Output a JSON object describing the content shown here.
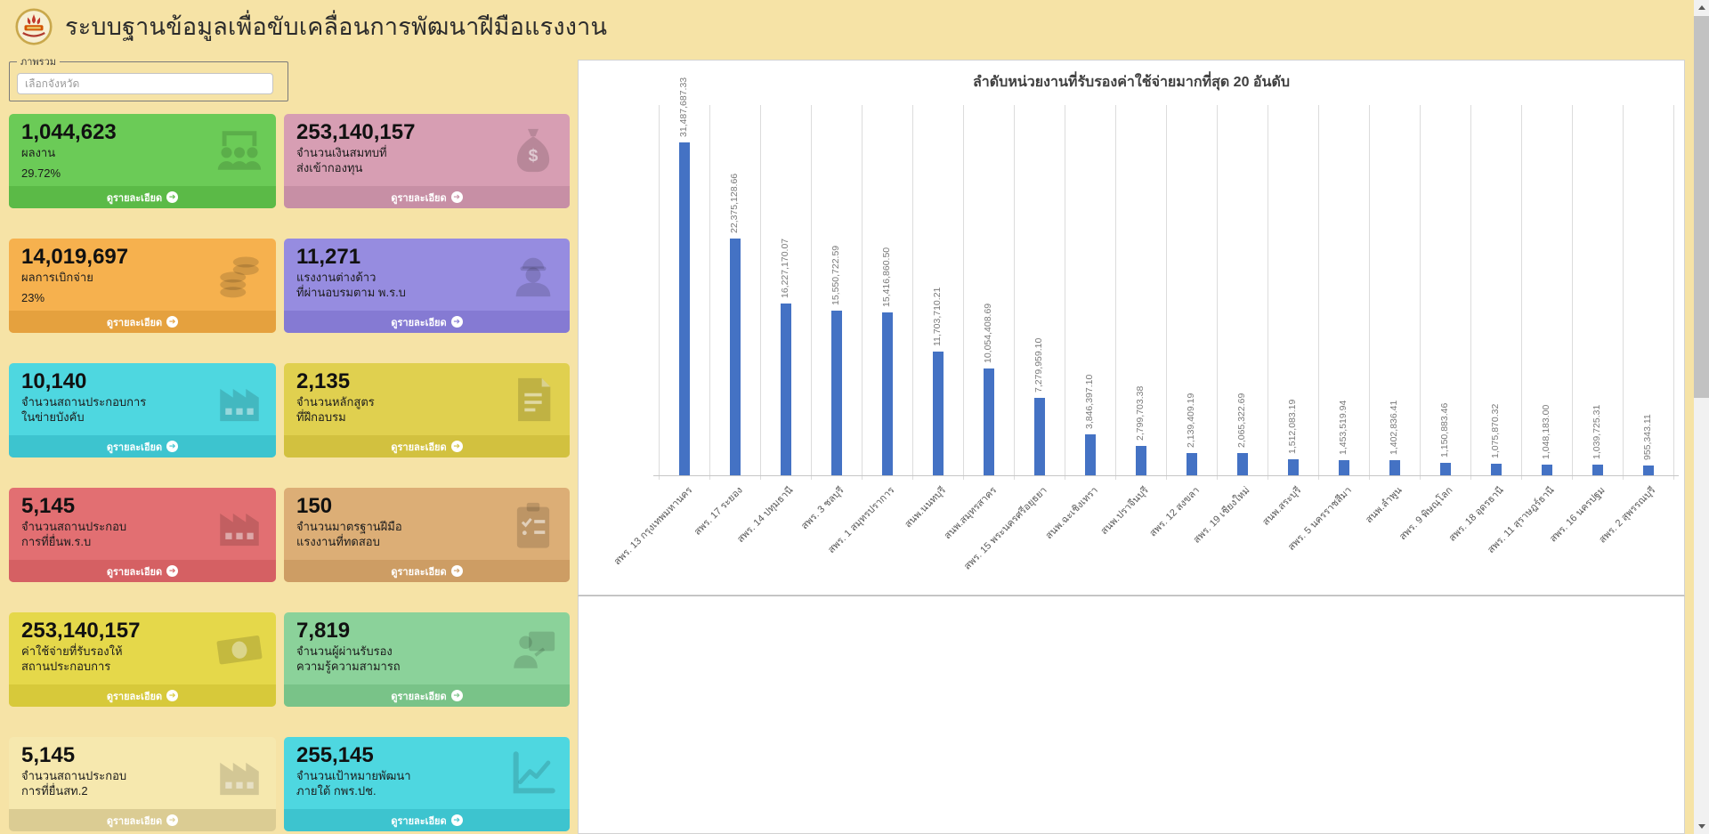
{
  "header": {
    "title": "ระบบฐานข้อมูลเพื่อขับเคลื่อนการพัฒนาฝีมือแรงงาน"
  },
  "overview": {
    "legend": "ภาพรวม",
    "province_placeholder": "เลือกจังหวัด"
  },
  "cards": {
    "details_label": "ดูรายละเอียด",
    "items": [
      {
        "value": "1,044,623",
        "label": "ผลงาน",
        "sub": "29.72%",
        "icon": "people-icon",
        "color": "#6BCB57",
        "footer_color": "#5BBA47"
      },
      {
        "value": "253,140,157",
        "label": "จำนวนเงินสมทบที่\nส่งเข้ากองทุน",
        "sub": "",
        "icon": "money-bag-icon",
        "color": "#D79EB3",
        "footer_color": "#C78FA5"
      },
      {
        "value": "14,019,697",
        "label": "ผลการเบิกจ่าย",
        "sub": "23%",
        "icon": "coins-icon",
        "color": "#F6B14E",
        "footer_color": "#E5A13E"
      },
      {
        "value": "11,271",
        "label": "แรงงานต่างด้าว\nที่ผ่านอบรมตาม พ.ร.บ",
        "sub": "",
        "icon": "worker-icon",
        "color": "#968CE0",
        "footer_color": "#857AD3"
      },
      {
        "value": "10,140",
        "label": "จำนวนสถานประกอบการ\nในข่ายบังคับ",
        "sub": "",
        "icon": "factory-icon",
        "color": "#4ED7E0",
        "footer_color": "#3DC4CF"
      },
      {
        "value": "2,135",
        "label": "จำนวนหลักสูตร\nที่ฝึกอบรม",
        "sub": "",
        "icon": "document-icon",
        "color": "#E0D04F",
        "footer_color": "#D2C13F"
      },
      {
        "value": "5,145",
        "label": "จำนวนสถานประกอบ\nการที่ยื่นพ.ร.บ",
        "sub": "",
        "icon": "factory-icon",
        "color": "#E26F72",
        "footer_color": "#D56063"
      },
      {
        "value": "150",
        "label": "จำนวนมาตรฐานฝีมือ\nแรงงานที่ทดสอบ",
        "sub": "",
        "icon": "clipboard-icon",
        "color": "#DCAE76",
        "footer_color": "#CD9D64"
      },
      {
        "value": "253,140,157",
        "label": "ค่าใช้จ่ายที่รับรองให้\nสถานประกอบการ",
        "sub": "",
        "icon": "banknote-icon",
        "color": "#E5D84A",
        "footer_color": "#D7C93A"
      },
      {
        "value": "7,819",
        "label": "จำนวนผู้ผ่านรับรอง\nความรู้ความสามารถ",
        "sub": "",
        "icon": "person-screen-icon",
        "color": "#8BD29A",
        "footer_color": "#79C388"
      },
      {
        "value": "5,145",
        "label": "จำนวนสถานประกอบ\nการที่ยื่นสท.2",
        "sub": "",
        "icon": "factory-icon",
        "color": "#F6E8AE",
        "footer_color": "#DBCC93"
      },
      {
        "value": "255,145",
        "label": "จำนวนเป้าหมายพัฒนา\nภายใต้ กพร.ปช.",
        "sub": "",
        "icon": "line-chart-icon",
        "color": "#4ED7E0",
        "footer_color": "#3DC4CF"
      }
    ]
  },
  "chart_data": {
    "type": "bar",
    "title": "ลำดับหน่วยงานที่รับรองค่าใช้จ่ายมากที่สุด 20 อันดับ",
    "categories": [
      "สพร. 13 กรุงเทพมหานคร",
      "สพร. 17 ระยอง",
      "สพร. 14 ปทุมธานี",
      "สพร. 3 ชลบุรี",
      "สพร. 1 สมุทรปราการ",
      "สนพ.นนทบุรี",
      "สนพ.สมุทรสาคร",
      "สพร. 15 พระนครศรีอยุธยา",
      "สนพ.ฉะเชิงเทรา",
      "สนพ.ปราจีนบุรี",
      "สพร. 12 สงขลา",
      "สพร. 19 เชียงใหม่",
      "สนพ.สระบุรี",
      "สพร. 5 นครราชสีมา",
      "สนพ.ลำพูน",
      "สพร. 9 พิษณุโลก",
      "สพร. 18 อุดรธานี",
      "สพร. 11 สุราษฎร์ธานี",
      "สพร. 16 นครปฐม",
      "สพร. 2 สุพรรณบุรี"
    ],
    "values": [
      31487687.33,
      22375128.66,
      16227170.07,
      15550722.59,
      15416860.5,
      11703710.21,
      10054408.69,
      7279959.1,
      3846397.1,
      2799703.38,
      2139409.19,
      2065322.69,
      1512083.19,
      1453519.94,
      1402836.41,
      1150883.46,
      1075870.32,
      1048183.0,
      1039725.31,
      955343.11
    ],
    "value_labels": [
      "31,487,687.33",
      "22,375,128.66",
      "16,227,170.07",
      "15,550,722.59",
      "15,416,860.50",
      "11,703,710.21",
      "10,054,408.69",
      "7,279,959.10",
      "3,846,397.10",
      "2,799,703.38",
      "2,139,409.19",
      "2,065,322.69",
      "1,512,083.19",
      "1,453,519.94",
      "1,402,836.41",
      "1,150,883.46",
      "1,075,870.32",
      "1,048,183.00",
      "1,039,725.31",
      "955,343.11"
    ],
    "xlabel": "",
    "ylabel": "",
    "ylim": [
      0,
      35000000
    ],
    "grid": "vertical-category-separators",
    "legend_position": "none",
    "bar_color": "#4472C4"
  },
  "colors": {
    "page_bg": "#F6E3A6",
    "panel_bg": "#FFFFFF",
    "bar_accent": "#4472C4"
  }
}
